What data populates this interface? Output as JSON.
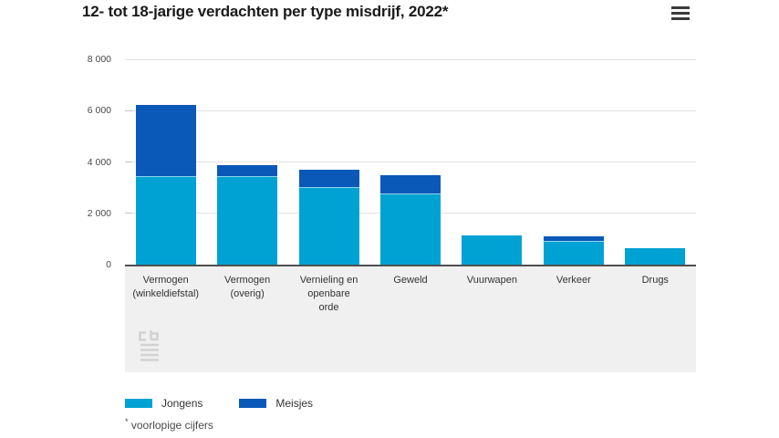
{
  "header": {
    "title": "12- tot 18-jarige verdachten per type misdrijf, 2022*"
  },
  "chart_data": {
    "type": "bar",
    "stacked": true,
    "title": "12- tot 18-jarige verdachten per type misdrijf, 2022*",
    "categories": [
      "Vermogen\n(winkeldiefstal)",
      "Vermogen\n(overig)",
      "Vernieling en\nopenbare\norde",
      "Geweld",
      "Vuurwapen",
      "Verkeer",
      "Drugs"
    ],
    "series": [
      {
        "name": "Jongens",
        "color": "#00a2d3",
        "values": [
          3400,
          3400,
          3000,
          2750,
          1150,
          900,
          650
        ]
      },
      {
        "name": "Meisjes",
        "color": "#0a58b8",
        "values": [
          2800,
          450,
          650,
          700,
          0,
          150,
          0
        ]
      }
    ],
    "totals": [
      6200,
      3850,
      3650,
      3450,
      1150,
      1050,
      650
    ],
    "xlabel": "",
    "ylabel": "",
    "ylim": [
      0,
      8000
    ],
    "yticks": [
      0,
      2000,
      4000,
      6000,
      8000
    ],
    "ytick_labels": [
      "0",
      "2 000",
      "4 000",
      "6 000",
      "8 000"
    ],
    "grid": "horizontal",
    "legend_position": "bottom"
  },
  "legend": {
    "items": [
      {
        "label": "Jongens",
        "color": "#00a2d3"
      },
      {
        "label": "Meisjes",
        "color": "#0a58b8"
      }
    ]
  },
  "footnote": {
    "marker": "*",
    "text": "voorlopige cijfers"
  },
  "logo": {
    "name": "cbs-logo"
  },
  "colors": {
    "jongens": "#00a2d3",
    "meisjes": "#0a58b8",
    "axis_line": "#4f4f4f",
    "gridline": "#e3e3e3",
    "band_bg": "#f0f0f0",
    "text": "#1a1a1a"
  }
}
